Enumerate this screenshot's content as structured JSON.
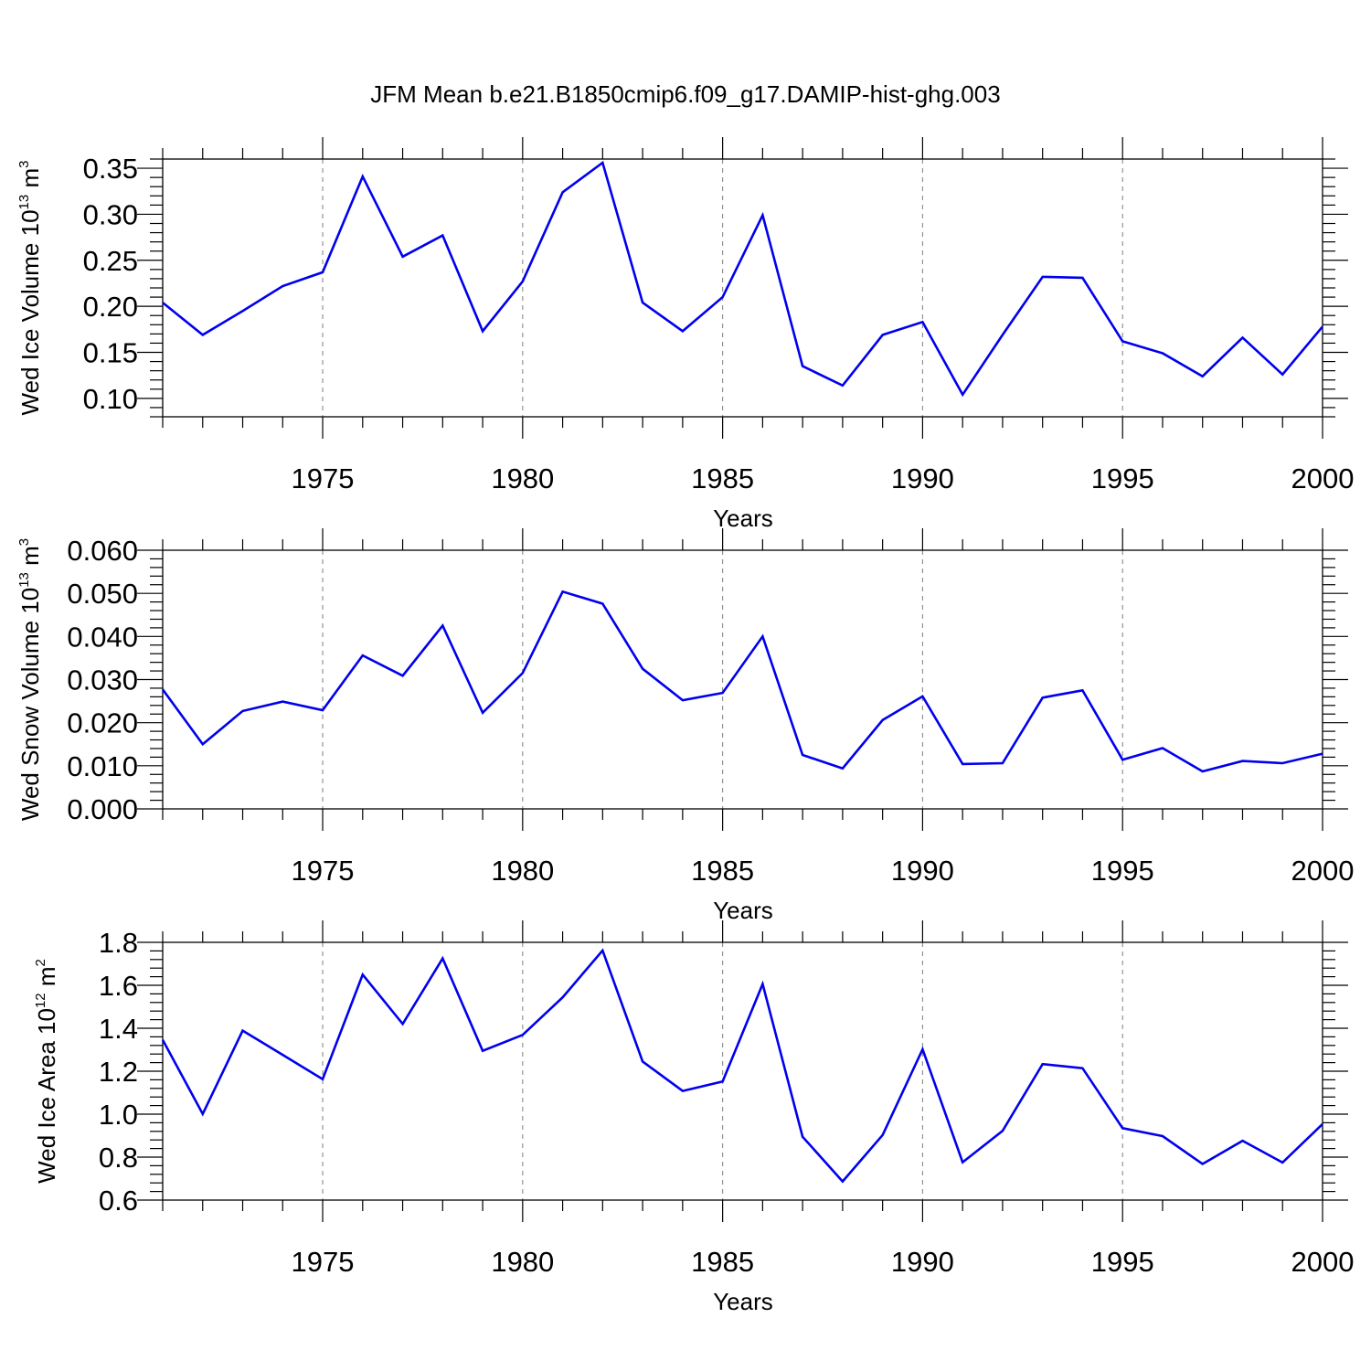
{
  "title": "JFM Mean b.e21.B1850cmip6.f09_g17.DAMIP-hist-ghg.003",
  "colors": {
    "line": "#0000ee",
    "grid": "#8a8a8a",
    "axes": "#000000"
  },
  "chart_data": [
    {
      "type": "line",
      "ylabel": {
        "text": "Wed Ice Volume 10",
        "exp": "13",
        "unit": " m",
        "unit_exp": "3"
      },
      "xlabel": "Years",
      "xlim": [
        1971,
        2000
      ],
      "ylim": [
        0.08,
        0.36
      ],
      "yticks": [
        0.1,
        0.15,
        0.2,
        0.25,
        0.3,
        0.35
      ],
      "yticklabels": [
        "0.10",
        "0.15",
        "0.20",
        "0.25",
        "0.30",
        "0.35"
      ],
      "xticks": [
        1975,
        1980,
        1985,
        1990,
        1995,
        2000
      ],
      "xticklabels": [
        "1975",
        "1980",
        "1985",
        "1990",
        "1995",
        "2000"
      ],
      "grid": "dashed vertical at major x ticks",
      "x": [
        1971,
        1972,
        1973,
        1974,
        1975,
        1976,
        1977,
        1978,
        1979,
        1980,
        1981,
        1982,
        1983,
        1984,
        1985,
        1986,
        1987,
        1988,
        1989,
        1990,
        1991,
        1992,
        1993,
        1994,
        1995,
        1996,
        1997,
        1998,
        1999,
        2000
      ],
      "values": [
        0.204,
        0.169,
        0.195,
        0.222,
        0.237,
        0.341,
        0.254,
        0.277,
        0.173,
        0.227,
        0.324,
        0.356,
        0.204,
        0.173,
        0.21,
        0.299,
        0.135,
        0.114,
        0.169,
        0.183,
        0.104,
        0.169,
        0.232,
        0.231,
        0.162,
        0.149,
        0.124,
        0.166,
        0.126,
        0.178
      ]
    },
    {
      "type": "line",
      "ylabel": {
        "text": "Wed Snow Volume 10",
        "exp": "13",
        "unit": " m",
        "unit_exp": "3"
      },
      "xlabel": "Years",
      "xlim": [
        1971,
        2000
      ],
      "ylim": [
        0.0,
        0.06
      ],
      "yticks": [
        0.0,
        0.01,
        0.02,
        0.03,
        0.04,
        0.05,
        0.06
      ],
      "yticklabels": [
        "0.000",
        "0.010",
        "0.020",
        "0.030",
        "0.040",
        "0.050",
        "0.060"
      ],
      "xticks": [
        1975,
        1980,
        1985,
        1990,
        1995,
        2000
      ],
      "xticklabels": [
        "1975",
        "1980",
        "1985",
        "1990",
        "1995",
        "2000"
      ],
      "grid": "dashed vertical at major x ticks",
      "x": [
        1971,
        1972,
        1973,
        1974,
        1975,
        1976,
        1977,
        1978,
        1979,
        1980,
        1981,
        1982,
        1983,
        1984,
        1985,
        1986,
        1987,
        1988,
        1989,
        1990,
        1991,
        1992,
        1993,
        1994,
        1995,
        1996,
        1997,
        1998,
        1999,
        2000
      ],
      "values": [
        0.0277,
        0.015,
        0.0227,
        0.0249,
        0.0229,
        0.0356,
        0.0309,
        0.0425,
        0.0223,
        0.0315,
        0.0504,
        0.0476,
        0.0325,
        0.0252,
        0.0269,
        0.04,
        0.0125,
        0.0094,
        0.0206,
        0.0261,
        0.0104,
        0.0106,
        0.0258,
        0.0275,
        0.0114,
        0.0141,
        0.0087,
        0.0111,
        0.0106,
        0.0128
      ]
    },
    {
      "type": "line",
      "ylabel": {
        "text": "Wed Ice Area 10",
        "exp": "12",
        "unit": " m",
        "unit_exp": "2"
      },
      "xlabel": "Years",
      "xlim": [
        1971,
        2000
      ],
      "ylim": [
        0.6,
        1.8
      ],
      "yticks": [
        0.6,
        0.8,
        1.0,
        1.2,
        1.4,
        1.6,
        1.8
      ],
      "yticklabels": [
        "0.6",
        "0.8",
        "1.0",
        "1.2",
        "1.4",
        "1.6",
        "1.8"
      ],
      "xticks": [
        1975,
        1980,
        1985,
        1990,
        1995,
        2000
      ],
      "xticklabels": [
        "1975",
        "1980",
        "1985",
        "1990",
        "1995",
        "2000"
      ],
      "grid": "dashed vertical at major x ticks",
      "x": [
        1971,
        1972,
        1973,
        1974,
        1975,
        1976,
        1977,
        1978,
        1979,
        1980,
        1981,
        1982,
        1983,
        1984,
        1985,
        1986,
        1987,
        1988,
        1989,
        1990,
        1991,
        1992,
        1993,
        1994,
        1995,
        1996,
        1997,
        1998,
        1999,
        2000
      ],
      "values": [
        1.346,
        1.001,
        1.389,
        1.276,
        1.163,
        1.65,
        1.42,
        1.725,
        1.295,
        1.369,
        1.544,
        1.762,
        1.245,
        1.108,
        1.152,
        1.606,
        0.895,
        0.687,
        0.903,
        1.302,
        0.776,
        0.922,
        1.233,
        1.214,
        0.935,
        0.898,
        0.768,
        0.876,
        0.775,
        0.954
      ]
    }
  ]
}
